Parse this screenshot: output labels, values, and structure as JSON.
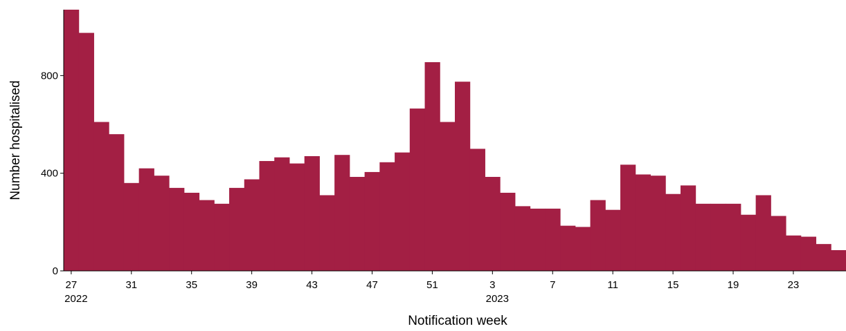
{
  "chart_data": {
    "type": "bar",
    "xlabel": "Notification week",
    "ylabel": "Number hospitalised",
    "ylim": [
      0,
      1070
    ],
    "yticks": [
      0,
      400,
      800
    ],
    "colors": {
      "bar": "#a31f44"
    },
    "grid": false,
    "weeks": [
      "27",
      "28",
      "29",
      "30",
      "31",
      "32",
      "33",
      "34",
      "35",
      "36",
      "37",
      "38",
      "39",
      "40",
      "41",
      "42",
      "43",
      "44",
      "45",
      "46",
      "47",
      "48",
      "49",
      "50",
      "51",
      "52",
      "1",
      "2",
      "3",
      "4",
      "5",
      "6",
      "7",
      "8",
      "9",
      "10",
      "11",
      "12",
      "13",
      "14",
      "15",
      "16",
      "17",
      "18",
      "19",
      "20",
      "21",
      "22",
      "23",
      "24",
      "25",
      "26"
    ],
    "values": [
      1070,
      975,
      610,
      560,
      360,
      420,
      390,
      340,
      320,
      290,
      275,
      340,
      375,
      450,
      465,
      440,
      470,
      310,
      475,
      385,
      405,
      445,
      485,
      665,
      855,
      610,
      775,
      500,
      385,
      320,
      265,
      255,
      255,
      185,
      180,
      290,
      250,
      435,
      395,
      390,
      315,
      350,
      275,
      275,
      275,
      230,
      310,
      225,
      145,
      140,
      110,
      85
    ],
    "xticks": [
      {
        "week": "27",
        "label": "27",
        "year": "2022"
      },
      {
        "week": "31",
        "label": "31"
      },
      {
        "week": "35",
        "label": "35"
      },
      {
        "week": "39",
        "label": "39"
      },
      {
        "week": "43",
        "label": "43"
      },
      {
        "week": "47",
        "label": "47"
      },
      {
        "week": "51",
        "label": "51"
      },
      {
        "week": "3",
        "label": "3",
        "year": "2023"
      },
      {
        "week": "7",
        "label": "7"
      },
      {
        "week": "11",
        "label": "11"
      },
      {
        "week": "15",
        "label": "15"
      },
      {
        "week": "19",
        "label": "19"
      },
      {
        "week": "23",
        "label": "23"
      }
    ]
  }
}
